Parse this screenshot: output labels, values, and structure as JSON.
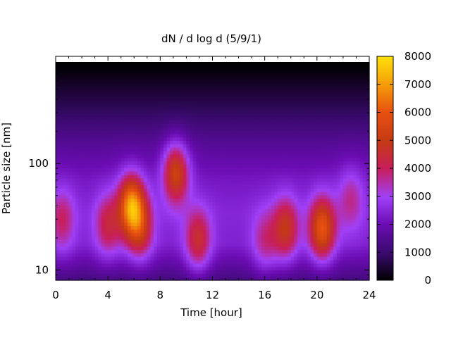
{
  "chart_data": {
    "type": "heatmap",
    "title": "dN / d log d (5/9/1)",
    "xlabel": "Time [hour]",
    "ylabel": "Particle size [nm]",
    "x_range": [
      0,
      24
    ],
    "x_ticks": [
      {
        "value": 0,
        "label": "0"
      },
      {
        "value": 4,
        "label": "4"
      },
      {
        "value": 8,
        "label": "8"
      },
      {
        "value": 12,
        "label": "12"
      },
      {
        "value": 16,
        "label": "16"
      },
      {
        "value": 20,
        "label": "20"
      },
      {
        "value": 24,
        "label": "24"
      }
    ],
    "y_scale": "log",
    "y_range_nm": [
      8,
      900
    ],
    "y_ticks": [
      {
        "value": 10,
        "label": "10"
      },
      {
        "value": 100,
        "label": "100"
      }
    ],
    "colorbar": {
      "range": [
        0,
        8000
      ],
      "ticks": [
        {
          "value": 0,
          "label": "0"
        },
        {
          "value": 1000,
          "label": "1000"
        },
        {
          "value": 2000,
          "label": "2000"
        },
        {
          "value": 3000,
          "label": "3000"
        },
        {
          "value": 4000,
          "label": "4000"
        },
        {
          "value": 5000,
          "label": "5000"
        },
        {
          "value": 6000,
          "label": "6000"
        },
        {
          "value": 7000,
          "label": "7000"
        },
        {
          "value": 8000,
          "label": "8000"
        }
      ],
      "palette": [
        "#000000",
        "#6b0cb4",
        "#a040f8",
        "#c81e5a",
        "#e85010",
        "#f49a08",
        "#ffe10a"
      ]
    },
    "background_profile": [
      {
        "size_nm": 8,
        "value": 1200
      },
      {
        "size_nm": 11,
        "value": 1700
      },
      {
        "size_nm": 18,
        "value": 2400
      },
      {
        "size_nm": 35,
        "value": 2500
      },
      {
        "size_nm": 70,
        "value": 2200
      },
      {
        "size_nm": 150,
        "value": 1600
      },
      {
        "size_nm": 300,
        "value": 900
      },
      {
        "size_nm": 600,
        "value": 300
      },
      {
        "size_nm": 850,
        "value": 0
      }
    ],
    "peaks": [
      {
        "time_hour": 0.5,
        "size_nm": 30,
        "value": 4000
      },
      {
        "time_hour": 4.0,
        "size_nm": 27,
        "value": 4300
      },
      {
        "time_hour": 5.8,
        "size_nm": 40,
        "value": 6800
      },
      {
        "time_hour": 6.5,
        "size_nm": 25,
        "value": 4600
      },
      {
        "time_hour": 9.2,
        "size_nm": 80,
        "value": 5300
      },
      {
        "time_hour": 10.9,
        "size_nm": 20,
        "value": 4600
      },
      {
        "time_hour": 16.0,
        "size_nm": 20,
        "value": 3700
      },
      {
        "time_hour": 17.6,
        "size_nm": 25,
        "value": 4900
      },
      {
        "time_hour": 20.4,
        "size_nm": 25,
        "value": 6000
      },
      {
        "time_hour": 22.6,
        "size_nm": 45,
        "value": 3700
      }
    ]
  }
}
